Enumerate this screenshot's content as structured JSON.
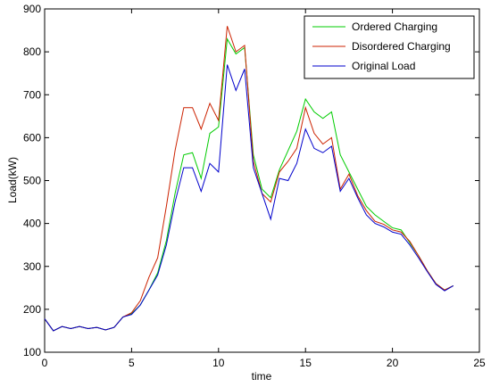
{
  "chart_data": {
    "type": "line",
    "title": "",
    "xlabel": "time",
    "ylabel": "Load(kW)",
    "xlim": [
      0,
      25
    ],
    "ylim": [
      100,
      900
    ],
    "xticks": [
      "0",
      "5",
      "10",
      "15",
      "20",
      "25"
    ],
    "yticks": [
      "100",
      "200",
      "300",
      "400",
      "500",
      "600",
      "700",
      "800",
      "900"
    ],
    "grid": false,
    "legend_position": "top-right",
    "x": [
      0,
      0.5,
      1,
      1.5,
      2,
      2.5,
      3,
      3.5,
      4,
      4.5,
      5,
      5.5,
      6,
      6.5,
      7,
      7.5,
      8,
      8.5,
      9,
      9.5,
      10,
      10.5,
      11,
      11.5,
      12,
      12.5,
      13,
      13.5,
      14,
      14.5,
      15,
      15.5,
      16,
      16.5,
      17,
      17.5,
      18,
      18.5,
      19,
      19.5,
      20,
      20.5,
      21,
      21.5,
      22,
      22.5,
      23,
      23.5
    ],
    "series": [
      {
        "name": "Ordered Charging",
        "color": "#00cc00",
        "values": [
          178,
          150,
          160,
          155,
          160,
          155,
          158,
          152,
          158,
          182,
          190,
          210,
          245,
          285,
          360,
          470,
          560,
          565,
          505,
          610,
          625,
          830,
          795,
          810,
          560,
          480,
          460,
          525,
          570,
          615,
          690,
          660,
          645,
          660,
          560,
          520,
          480,
          440,
          420,
          405,
          390,
          385,
          355,
          325,
          290,
          260,
          245,
          255
        ]
      },
      {
        "name": "Disordered Charging",
        "color": "#cc2200",
        "values": [
          178,
          150,
          160,
          155,
          160,
          155,
          158,
          152,
          158,
          182,
          192,
          220,
          275,
          320,
          440,
          570,
          670,
          670,
          620,
          680,
          640,
          860,
          800,
          815,
          545,
          470,
          450,
          520,
          545,
          575,
          670,
          610,
          585,
          600,
          480,
          515,
          465,
          430,
          405,
          398,
          385,
          380,
          358,
          325,
          290,
          260,
          245,
          255
        ]
      },
      {
        "name": "Original Load",
        "color": "#0000cc",
        "values": [
          178,
          150,
          160,
          155,
          160,
          155,
          158,
          152,
          158,
          182,
          188,
          210,
          245,
          280,
          350,
          450,
          530,
          530,
          475,
          540,
          520,
          770,
          710,
          760,
          530,
          470,
          410,
          505,
          500,
          540,
          620,
          575,
          565,
          580,
          475,
          505,
          460,
          420,
          400,
          392,
          380,
          375,
          350,
          320,
          288,
          258,
          243,
          255
        ]
      }
    ]
  }
}
